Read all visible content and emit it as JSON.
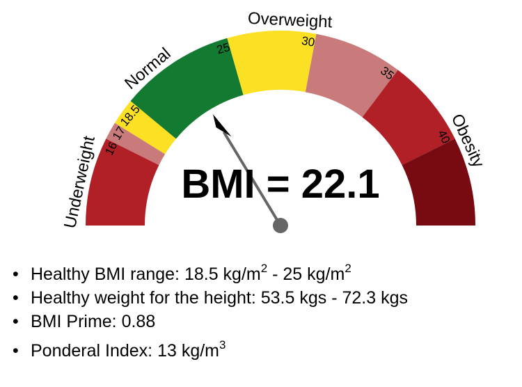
{
  "gauge": {
    "result_text": "BMI = 22.1",
    "value": 22.1,
    "scale_min": 11,
    "scale_max": 45,
    "segments": [
      {
        "from": 11,
        "to": 16,
        "color": "#b22027"
      },
      {
        "from": 16,
        "to": 17,
        "color": "#c97b7b"
      },
      {
        "from": 17,
        "to": 18.5,
        "color": "#fce023"
      },
      {
        "from": 18.5,
        "to": 25,
        "color": "#137a31"
      },
      {
        "from": 25,
        "to": 30,
        "color": "#fce023"
      },
      {
        "from": 30,
        "to": 35,
        "color": "#c97b7b"
      },
      {
        "from": 35,
        "to": 40,
        "color": "#b22027"
      },
      {
        "from": 40,
        "to": 45,
        "color": "#780a12"
      }
    ],
    "category_labels": [
      {
        "text": "Underweight",
        "at": 13.3
      },
      {
        "text": "Normal",
        "at": 20.4
      },
      {
        "text": "Overweight",
        "at": 28.5
      },
      {
        "text": "Obesity",
        "at": 40.4
      }
    ],
    "tick_labels": [
      {
        "text": "16",
        "at": 16
      },
      {
        "text": "17",
        "at": 17
      },
      {
        "text": "18.5",
        "at": 18.5
      },
      {
        "text": "25",
        "at": 25
      },
      {
        "text": "30",
        "at": 30
      },
      {
        "text": "35",
        "at": 35
      },
      {
        "text": "40",
        "at": 40
      }
    ],
    "needle_color": "#666666"
  },
  "results": {
    "healthy_range_label": "Healthy BMI range: ",
    "healthy_range_low": "18.5 kg/m",
    "healthy_range_sep": " - ",
    "healthy_range_high": "25 kg/m",
    "area_exp": "2",
    "healthy_weight": "Healthy weight for the height: 53.5 kgs - 72.3 kgs",
    "bmi_prime": "BMI Prime: 0.88",
    "ponderal_label": "Ponderal Index: ",
    "ponderal_value": "13 kg/m",
    "volume_exp": "3",
    "bullet": "•"
  }
}
